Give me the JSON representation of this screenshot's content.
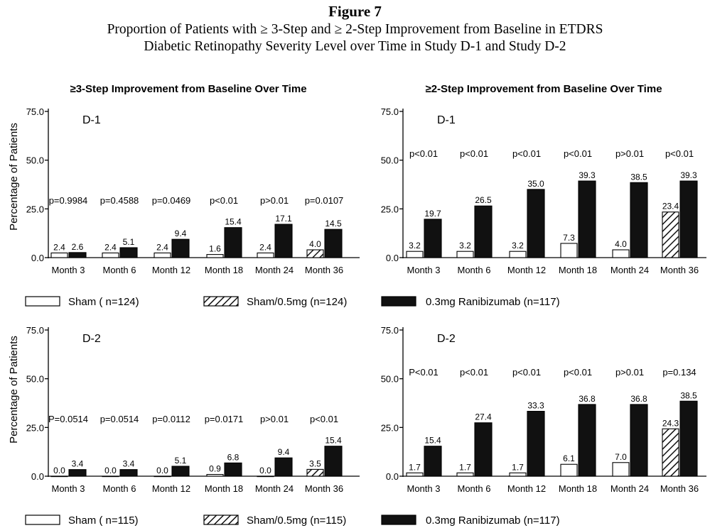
{
  "figure": {
    "title": "Figure 7",
    "caption_lines": [
      "Proportion of Patients with ≥ 3-Step and ≥ 2-Step Improvement from Baseline in ETDRS",
      "Diabetic Retinopathy Severity Level over Time in Study D-1 and Study D-2"
    ]
  },
  "column_headers": [
    "≥3-Step Improvement from Baseline Over Time",
    "≥2-Step Improvement from Baseline Over Time"
  ],
  "ylabel": "Percentage of Patients",
  "colors": {
    "sham": "#ffffff",
    "sham_05": "hatch",
    "ranibizumab": "#111111",
    "axis": "#000000"
  },
  "legends": [
    [
      "Sham ( n=124)",
      "Sham/0.5mg (n=124)",
      "0.3mg Ranibizumab (n=117)"
    ],
    [
      "Sham ( n=115)",
      "Sham/0.5mg (n=115)",
      "0.3mg Ranibizumab (n=117)"
    ]
  ],
  "chart_data": [
    {
      "type": "bar",
      "study": "D-1",
      "title": "≥3-Step Improvement from Baseline Over Time",
      "ylabel": "Percentage of Patients",
      "ylim": [
        0,
        75
      ],
      "yticks": [
        "0.0",
        "25.0",
        "50.0",
        "75.0"
      ],
      "categories": [
        "Month 3",
        "Month 6",
        "Month 12",
        "Month 18",
        "Month 24",
        "Month 36"
      ],
      "series": [
        {
          "name": "Sham ( n=124)",
          "style": "sham",
          "values": [
            2.4,
            2.4,
            2.4,
            1.6,
            2.4,
            4.0
          ],
          "labels": [
            "2.4",
            "2.4",
            "2.4",
            "1.6",
            "2.4",
            "4.0"
          ]
        },
        {
          "name": "0.3mg Ranibizumab (n=117)",
          "style": "rbz",
          "values": [
            2.6,
            5.1,
            9.4,
            15.4,
            17.1,
            14.5
          ],
          "labels": [
            "2.6",
            "5.1",
            "9.4",
            "15.4",
            "17.1",
            "14.5"
          ]
        }
      ],
      "pvalues": [
        "p=0.9984",
        "p=0.4588",
        "p=0.0469",
        "p<0.01",
        "p>0.01",
        "p=0.0107"
      ]
    },
    {
      "type": "bar",
      "study": "D-1",
      "title": "≥2-Step Improvement from Baseline Over Time",
      "ylim": [
        0,
        75
      ],
      "yticks": [
        "0.0",
        "25.0",
        "50.0",
        "75.0"
      ],
      "categories": [
        "Month 3",
        "Month 6",
        "Month 12",
        "Month 18",
        "Month 24",
        "Month 36"
      ],
      "series": [
        {
          "name": "Sham ( n=124)",
          "style": "sham",
          "values": [
            3.2,
            3.2,
            3.2,
            7.3,
            4.0,
            23.4
          ],
          "labels": [
            "3.2",
            "3.2",
            "3.2",
            "7.3",
            "4.0",
            "23.4"
          ]
        },
        {
          "name": "0.3mg Ranibizumab (n=117)",
          "style": "rbz",
          "values": [
            19.7,
            26.5,
            35.0,
            39.3,
            38.5,
            39.3
          ],
          "labels": [
            "19.7",
            "26.5",
            "35.0",
            "39.3",
            "38.5",
            "39.3"
          ]
        }
      ],
      "pvalues": [
        "p<0.01",
        "p<0.01",
        "p<0.01",
        "p<0.01",
        "p>0.01",
        "p<0.01"
      ]
    },
    {
      "type": "bar",
      "study": "D-2",
      "title": "≥3-Step Improvement from Baseline Over Time",
      "ylabel": "Percentage of Patients",
      "ylim": [
        0,
        75
      ],
      "yticks": [
        "0.0",
        "25.0",
        "50.0",
        "75.0"
      ],
      "categories": [
        "Month 3",
        "Month 6",
        "Month 12",
        "Month 18",
        "Month 24",
        "Month 36"
      ],
      "series": [
        {
          "name": "Sham ( n=115)",
          "style": "sham",
          "values": [
            0.0,
            0.0,
            0.0,
            0.9,
            0.0,
            3.5
          ],
          "labels": [
            "0.0",
            "0.0",
            "0.0",
            "0.9",
            "0.0",
            "3.5"
          ]
        },
        {
          "name": "0.3mg Ranibizumab (n=117)",
          "style": "rbz",
          "values": [
            3.4,
            3.4,
            5.1,
            6.8,
            9.4,
            15.4
          ],
          "labels": [
            "3.4",
            "3.4",
            "5.1",
            "6.8",
            "9.4",
            "15.4"
          ]
        }
      ],
      "pvalues": [
        "P=0.0514",
        "p=0.0514",
        "p=0.0112",
        "p=0.0171",
        "p>0.01",
        "p<0.01"
      ]
    },
    {
      "type": "bar",
      "study": "D-2",
      "title": "≥2-Step Improvement from Baseline Over Time",
      "ylim": [
        0,
        75
      ],
      "yticks": [
        "0.0",
        "25.0",
        "50.0",
        "75.0"
      ],
      "categories": [
        "Month 3",
        "Month 6",
        "Month 12",
        "Month 18",
        "Month 24",
        "Month 36"
      ],
      "series": [
        {
          "name": "Sham ( n=115)",
          "style": "sham",
          "values": [
            1.7,
            1.7,
            1.7,
            6.1,
            7.0,
            24.3
          ],
          "labels": [
            "1.7",
            "1.7",
            "1.7",
            "6.1",
            "7.0",
            "24.3"
          ]
        },
        {
          "name": "0.3mg Ranibizumab (n=117)",
          "style": "rbz",
          "values": [
            15.4,
            27.4,
            33.3,
            36.8,
            36.8,
            38.5
          ],
          "labels": [
            "15.4",
            "27.4",
            "33.3",
            "36.8",
            "36.8",
            "38.5"
          ]
        }
      ],
      "pvalues": [
        "P<0.01",
        "p<0.01",
        "p<0.01",
        "p<0.01",
        "p>0.01",
        "p=0.134"
      ]
    }
  ]
}
